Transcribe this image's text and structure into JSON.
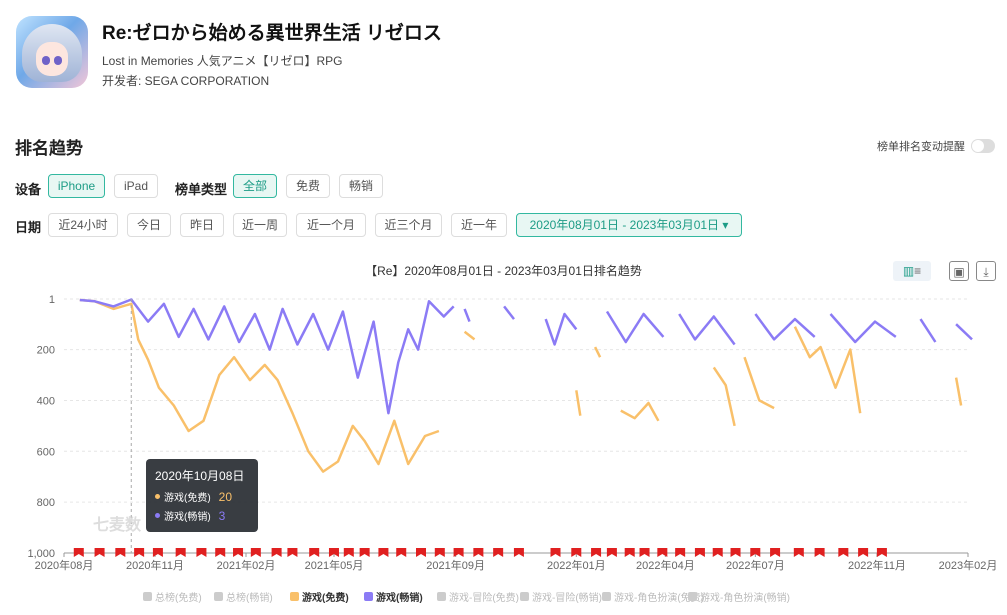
{
  "app": {
    "title": "Re:ゼロから始める異世界生活 リゼロス",
    "subtitle": "Lost in Memories 人気アニメ【リゼロ】RPG",
    "developer": "开发者: SEGA CORPORATION"
  },
  "section": {
    "title": "排名趋势",
    "toggle_label": "榜单排名变动提醒"
  },
  "filters": {
    "device_label": "设备",
    "devices": [
      "iPhone",
      "iPad"
    ],
    "list_type_label": "榜单类型",
    "list_types": [
      "全部",
      "免费",
      "畅销"
    ],
    "date_label": "日期",
    "ranges": [
      "近24小时",
      "今日",
      "昨日",
      "近一周",
      "近一个月",
      "近三个月",
      "近一年"
    ],
    "date_range": "2020年08月01日 - 2023年03月01日 ▾"
  },
  "colors": {
    "accent": "#1d9c86",
    "series_free": "#f9c06a",
    "series_grossing": "#8b7bf5",
    "markers": "#e02020"
  },
  "tooltip": {
    "date": "2020年10月08日",
    "rows": [
      {
        "label": "游戏(免费)",
        "value": "20"
      },
      {
        "label": "游戏(畅销)",
        "value": "3"
      }
    ]
  },
  "watermark": "七麦数",
  "chart_data": {
    "type": "line",
    "title": "【Re】2020年08月01日 - 2023年03月01日排名趋势",
    "y_axis": {
      "inverted": true,
      "range": [
        1,
        1000
      ],
      "ticks": [
        "1",
        "200",
        "400",
        "600",
        "800",
        "1,000"
      ]
    },
    "x_axis": {
      "ticks": [
        "2020年08月",
        "2020年11月",
        "2021年02月",
        "2021年05月",
        "2021年09月",
        "2022年01月",
        "2022年04月",
        "2022年07月",
        "2022年11月",
        "2023年02月"
      ]
    },
    "grid": true,
    "series": [
      {
        "name": "游戏(免费)",
        "color": "#f9c06a",
        "segments": [
          [
            [
              "2020-08-17",
              5
            ],
            [
              "2020-09-01",
              10
            ],
            [
              "2020-09-20",
              40
            ],
            [
              "2020-10-08",
              20
            ],
            [
              "2020-10-15",
              160
            ],
            [
              "2020-10-25",
              240
            ],
            [
              "2020-11-05",
              350
            ],
            [
              "2020-11-20",
              420
            ],
            [
              "2020-12-05",
              520
            ],
            [
              "2020-12-20",
              480
            ],
            [
              "2021-01-05",
              300
            ],
            [
              "2021-01-20",
              230
            ],
            [
              "2021-02-05",
              320
            ],
            [
              "2021-02-20",
              260
            ],
            [
              "2021-03-05",
              320
            ],
            [
              "2021-03-20",
              450
            ],
            [
              "2021-04-05",
              600
            ],
            [
              "2021-04-20",
              680
            ],
            [
              "2021-05-05",
              640
            ],
            [
              "2021-05-20",
              500
            ],
            [
              "2021-06-01",
              560
            ],
            [
              "2021-06-15",
              650
            ],
            [
              "2021-07-01",
              480
            ],
            [
              "2021-07-15",
              650
            ],
            [
              "2021-08-01",
              540
            ],
            [
              "2021-08-15",
              520
            ]
          ],
          [
            [
              "2021-09-10",
              130
            ],
            [
              "2021-09-20",
              160
            ]
          ],
          [
            [
              "2022-01-01",
              360
            ],
            [
              "2022-01-05",
              460
            ]
          ],
          [
            [
              "2022-01-20",
              190
            ],
            [
              "2022-01-25",
              230
            ]
          ],
          [
            [
              "2022-02-15",
              440
            ],
            [
              "2022-03-01",
              470
            ],
            [
              "2022-03-15",
              410
            ],
            [
              "2022-03-25",
              480
            ]
          ],
          [
            [
              "2022-05-20",
              270
            ],
            [
              "2022-06-01",
              340
            ],
            [
              "2022-06-10",
              500
            ]
          ],
          [
            [
              "2022-06-20",
              230
            ],
            [
              "2022-07-05",
              400
            ],
            [
              "2022-07-20",
              430
            ]
          ],
          [
            [
              "2022-08-10",
              110
            ],
            [
              "2022-08-25",
              230
            ],
            [
              "2022-09-05",
              190
            ],
            [
              "2022-09-20",
              350
            ],
            [
              "2022-10-05",
              200
            ],
            [
              "2022-10-15",
              450
            ]
          ],
          [
            [
              "2023-01-20",
              310
            ],
            [
              "2023-01-25",
              420
            ]
          ]
        ]
      },
      {
        "name": "游戏(畅销)",
        "color": "#8b7bf5",
        "segments": [
          [
            [
              "2020-08-17",
              5
            ],
            [
              "2020-09-01",
              10
            ],
            [
              "2020-09-20",
              30
            ],
            [
              "2020-10-08",
              3
            ],
            [
              "2020-10-25",
              90
            ],
            [
              "2020-11-10",
              20
            ],
            [
              "2020-11-25",
              150
            ],
            [
              "2020-12-10",
              40
            ],
            [
              "2020-12-25",
              160
            ],
            [
              "2021-01-10",
              30
            ],
            [
              "2021-01-25",
              170
            ],
            [
              "2021-02-10",
              60
            ],
            [
              "2021-02-25",
              200
            ],
            [
              "2021-03-10",
              40
            ],
            [
              "2021-03-25",
              180
            ],
            [
              "2021-04-10",
              60
            ],
            [
              "2021-04-25",
              200
            ],
            [
              "2021-05-10",
              50
            ],
            [
              "2021-05-25",
              310
            ],
            [
              "2021-06-10",
              90
            ],
            [
              "2021-06-25",
              450
            ],
            [
              "2021-07-05",
              250
            ],
            [
              "2021-07-15",
              120
            ],
            [
              "2021-07-25",
              200
            ],
            [
              "2021-08-05",
              10
            ],
            [
              "2021-08-20",
              70
            ],
            [
              "2021-08-30",
              30
            ]
          ],
          [
            [
              "2021-09-10",
              40
            ],
            [
              "2021-09-15",
              90
            ]
          ],
          [
            [
              "2021-10-20",
              30
            ],
            [
              "2021-10-30",
              80
            ]
          ],
          [
            [
              "2021-12-01",
              80
            ],
            [
              "2021-12-10",
              180
            ],
            [
              "2021-12-20",
              60
            ],
            [
              "2022-01-01",
              120
            ]
          ],
          [
            [
              "2022-02-01",
              50
            ],
            [
              "2022-02-20",
              170
            ],
            [
              "2022-03-10",
              60
            ],
            [
              "2022-03-30",
              150
            ]
          ],
          [
            [
              "2022-04-15",
              60
            ],
            [
              "2022-05-01",
              160
            ],
            [
              "2022-05-20",
              70
            ],
            [
              "2022-06-10",
              180
            ]
          ],
          [
            [
              "2022-07-01",
              60
            ],
            [
              "2022-07-20",
              160
            ],
            [
              "2022-08-10",
              80
            ],
            [
              "2022-08-30",
              150
            ]
          ],
          [
            [
              "2022-09-15",
              60
            ],
            [
              "2022-10-10",
              170
            ],
            [
              "2022-10-30",
              90
            ],
            [
              "2022-11-20",
              150
            ]
          ],
          [
            [
              "2022-12-15",
              80
            ],
            [
              "2022-12-30",
              170
            ]
          ],
          [
            [
              "2023-01-20",
              100
            ],
            [
              "2023-02-05",
              160
            ]
          ]
        ]
      }
    ],
    "event_markers": [
      "2020-08-20",
      "2020-09-10",
      "2020-10-01",
      "2020-10-20",
      "2020-11-08",
      "2020-12-01",
      "2020-12-22",
      "2021-01-10",
      "2021-01-28",
      "2021-02-15",
      "2021-03-08",
      "2021-03-24",
      "2021-04-15",
      "2021-05-05",
      "2021-05-20",
      "2021-06-05",
      "2021-06-24",
      "2021-07-12",
      "2021-08-01",
      "2021-08-20",
      "2021-09-08",
      "2021-09-28",
      "2021-10-18",
      "2021-11-08",
      "2021-12-15",
      "2022-01-05",
      "2022-01-25",
      "2022-02-10",
      "2022-02-28",
      "2022-03-15",
      "2022-04-02",
      "2022-04-20",
      "2022-05-10",
      "2022-05-28",
      "2022-06-15",
      "2022-07-05",
      "2022-07-25",
      "2022-08-18",
      "2022-09-08",
      "2022-10-02",
      "2022-10-22",
      "2022-11-10"
    ],
    "legend": [
      "总榜(免费)",
      "总榜(畅销)",
      "游戏(免费)",
      "游戏(畅销)",
      "游戏-冒险(免费)",
      "游戏-冒险(畅销)",
      "游戏-角色扮演(免费)",
      "游戏-角色扮演(畅销)"
    ],
    "legend_active": [
      false,
      false,
      true,
      true,
      false,
      false,
      false,
      false
    ],
    "hover_date": "2020-10-08"
  }
}
